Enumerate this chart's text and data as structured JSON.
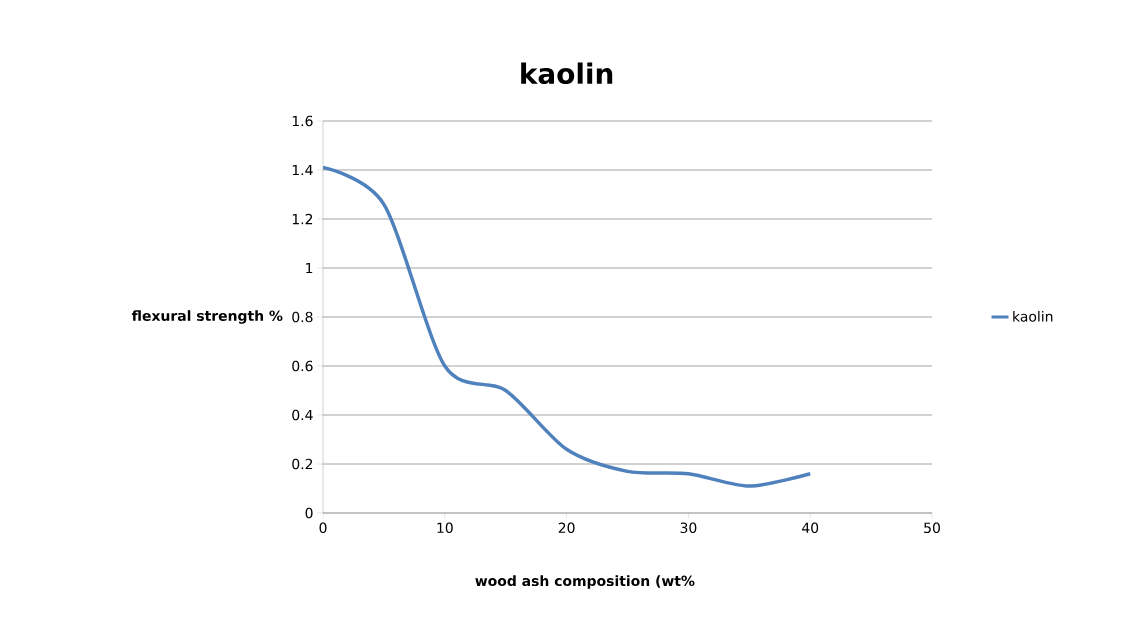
{
  "chart_data": {
    "type": "line",
    "title": "kaolin",
    "xlabel": "wood ash composition (wt%",
    "ylabel": "flexural strength %",
    "x": [
      0,
      5,
      10,
      15,
      20,
      25,
      30,
      35,
      40
    ],
    "series": [
      {
        "name": "kaolin",
        "color": "#4f81bd",
        "values": [
          1.41,
          1.26,
          0.6,
          0.5,
          0.26,
          0.17,
          0.16,
          0.11,
          0.16
        ]
      }
    ],
    "xlim": [
      0,
      50
    ],
    "ylim": [
      0,
      1.6
    ],
    "xticks": [
      0,
      10,
      20,
      30,
      40,
      50
    ],
    "yticks": [
      0,
      0.2,
      0.4,
      0.6,
      0.8,
      1,
      1.2,
      1.4,
      1.6
    ],
    "grid": "y",
    "legend": "right"
  }
}
